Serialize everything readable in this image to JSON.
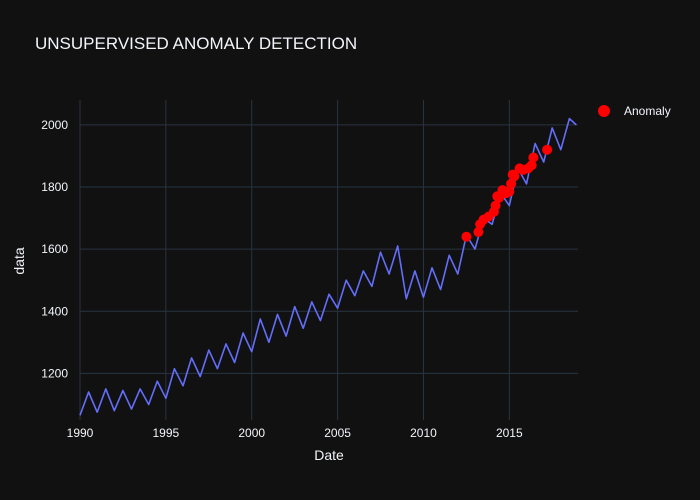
{
  "chart_data": {
    "type": "line",
    "title": "UNSUPERVISED ANOMALY DETECTION",
    "xlabel": "Date",
    "ylabel": "data",
    "x_axis": "date (year)",
    "xlim": [
      1990,
      2019
    ],
    "ylim": [
      1050,
      2080
    ],
    "x_ticks": [
      1990,
      1995,
      2000,
      2005,
      2010,
      2015
    ],
    "y_ticks": [
      1200,
      1400,
      1600,
      1800,
      2000
    ],
    "grid": true,
    "legend": {
      "position": "top-right",
      "entries": [
        "Anomaly"
      ]
    },
    "colors": {
      "line": "#636efa",
      "anomaly": "#ff0000",
      "background": "#111111",
      "grid": "#283442"
    },
    "series": [
      {
        "type": "line",
        "x": [
          1990.0,
          1990.5,
          1991.0,
          1991.5,
          1992.0,
          1992.5,
          1993.0,
          1993.5,
          1994.0,
          1994.5,
          1995.0,
          1995.5,
          1996.0,
          1996.5,
          1997.0,
          1997.5,
          1998.0,
          1998.5,
          1999.0,
          1999.5,
          2000.0,
          2000.5,
          2001.0,
          2001.5,
          2002.0,
          2002.5,
          2003.0,
          2003.5,
          2004.0,
          2004.5,
          2005.0,
          2005.5,
          2006.0,
          2006.5,
          2007.0,
          2007.5,
          2008.0,
          2008.5,
          2009.0,
          2009.5,
          2010.0,
          2010.5,
          2011.0,
          2011.5,
          2012.0,
          2012.5,
          2013.0,
          2013.5,
          2014.0,
          2014.5,
          2015.0,
          2015.5,
          2016.0,
          2016.5,
          2017.0,
          2017.5,
          2018.0,
          2018.5,
          2018.9
        ],
        "values": [
          1065,
          1140,
          1075,
          1150,
          1080,
          1145,
          1085,
          1150,
          1100,
          1175,
          1120,
          1215,
          1160,
          1250,
          1190,
          1275,
          1215,
          1295,
          1235,
          1330,
          1270,
          1375,
          1300,
          1390,
          1320,
          1415,
          1345,
          1430,
          1370,
          1455,
          1410,
          1500,
          1450,
          1530,
          1480,
          1590,
          1520,
          1610,
          1440,
          1530,
          1445,
          1540,
          1470,
          1580,
          1520,
          1645,
          1600,
          1700,
          1680,
          1780,
          1740,
          1860,
          1810,
          1940,
          1880,
          1990,
          1920,
          2020,
          2000
        ]
      },
      {
        "name": "Anomaly",
        "type": "scatter",
        "x": [
          2012.5,
          2013.2,
          2013.3,
          2013.5,
          2013.8,
          2014.1,
          2014.2,
          2014.3,
          2014.4,
          2014.6,
          2014.8,
          2015.0,
          2015.1,
          2015.2,
          2015.3,
          2015.6,
          2015.8,
          2016.1,
          2016.3,
          2016.4,
          2017.2
        ],
        "values": [
          1640,
          1655,
          1680,
          1695,
          1705,
          1720,
          1740,
          1770,
          1765,
          1790,
          1780,
          1785,
          1810,
          1840,
          1835,
          1860,
          1855,
          1860,
          1870,
          1895,
          1920
        ]
      }
    ]
  }
}
